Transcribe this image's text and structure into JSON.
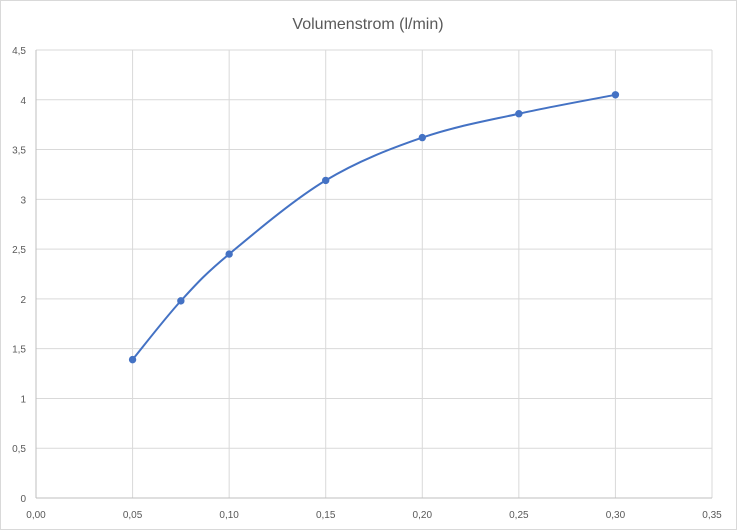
{
  "chart_data": {
    "type": "line",
    "title": "Volumenstrom (l/min)",
    "xlabel": "",
    "ylabel": "",
    "xlim": [
      0,
      0.35
    ],
    "ylim": [
      0,
      4.5
    ],
    "x_ticks": [
      "0,00",
      "0,05",
      "0,10",
      "0,15",
      "0,20",
      "0,25",
      "0,30",
      "0,35"
    ],
    "y_ticks": [
      "0",
      "0,5",
      "1",
      "1,5",
      "2",
      "2,5",
      "3",
      "3,5",
      "4",
      "4,5"
    ],
    "grid": true,
    "smooth": true,
    "series": [
      {
        "x": [
          0.05,
          0.075,
          0.1,
          0.15,
          0.2,
          0.25,
          0.3
        ],
        "y": [
          1.39,
          1.98,
          2.45,
          3.19,
          3.62,
          3.86,
          4.05
        ],
        "color": "#4472c4"
      }
    ]
  }
}
